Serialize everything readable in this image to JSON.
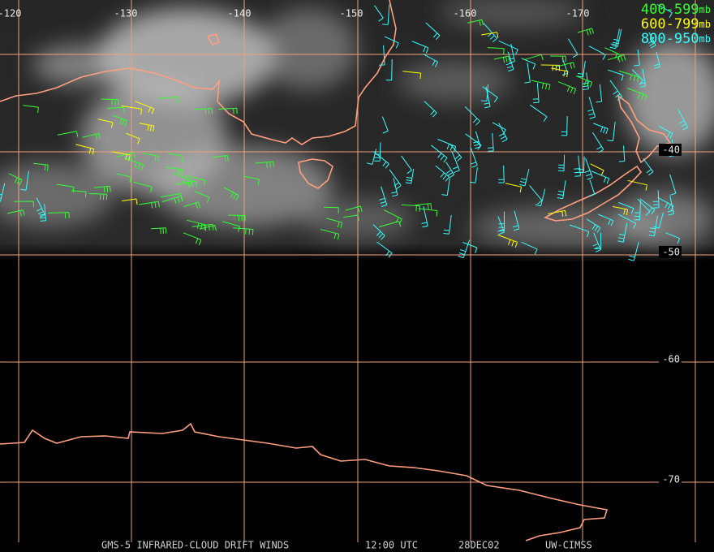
{
  "longitude_labels": [
    "-120",
    "-130",
    "-140",
    "-150",
    "-160",
    "-170"
  ],
  "latitude_labels": [
    "-40",
    "-50",
    "-60",
    "-70"
  ],
  "legend": [
    {
      "range": "400-599",
      "unit": "mb",
      "color": "#33ff33"
    },
    {
      "range": "600-799",
      "unit": "mb",
      "color": "#ffff00"
    },
    {
      "range": "800-950",
      "unit": "mb",
      "color": "#33ffff"
    }
  ],
  "footer": {
    "product": "GMS-5 INFRARED-CLOUD DRIFT WINDS",
    "time": "12:00 UTC",
    "date": "28DEC02",
    "source": "UW-CIMSS"
  }
}
